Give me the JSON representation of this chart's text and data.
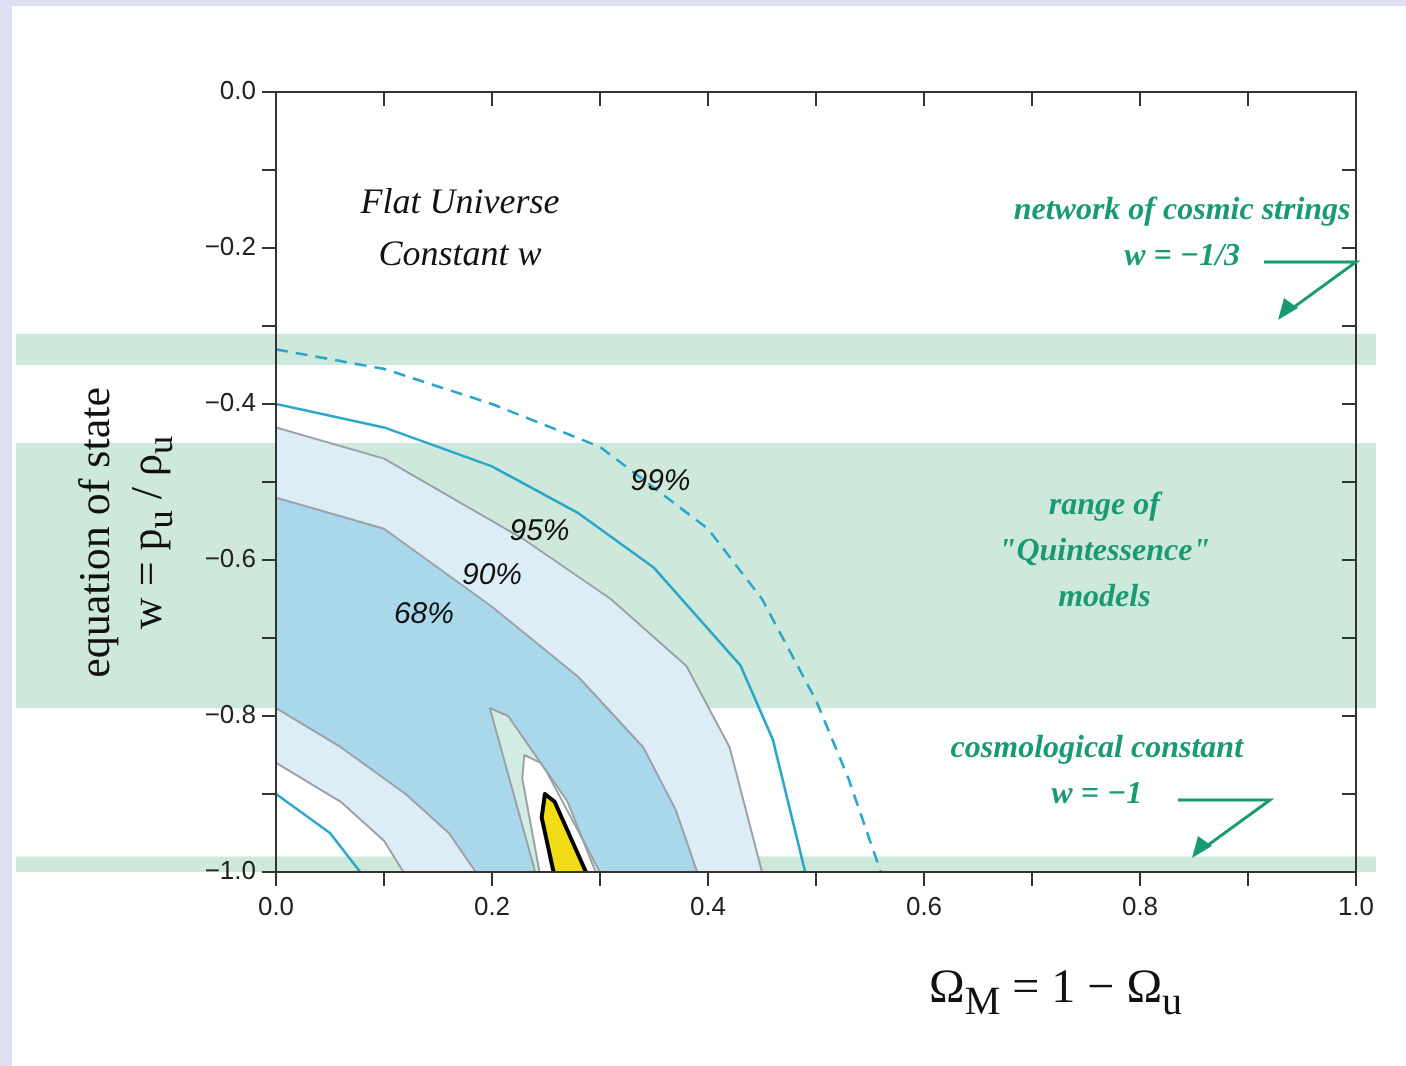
{
  "chart_data": {
    "type": "line",
    "xlabel": "Ω$_{M}$ = 1 − Ω$_{u}$",
    "ylabel": "equation of state\nw = p$_{u}$ / ρ$_{u}$",
    "xlim": [
      0,
      1
    ],
    "ylim": [
      -1,
      0
    ],
    "xticks": [
      {
        "value": 0,
        "label": "0.0"
      },
      {
        "value": 0.1,
        "label": null
      },
      {
        "value": 0.2,
        "label": "0.2"
      },
      {
        "value": 0.3,
        "label": null
      },
      {
        "value": 0.4,
        "label": "0.4"
      },
      {
        "value": 0.5,
        "label": null
      },
      {
        "value": 0.6,
        "label": "0.6"
      },
      {
        "value": 0.7,
        "label": null
      },
      {
        "value": 0.8,
        "label": "0.8"
      },
      {
        "value": 0.9,
        "label": null
      },
      {
        "value": 1,
        "label": "1.0"
      }
    ],
    "yticks": [
      {
        "value": 0,
        "label": "0.0"
      },
      {
        "value": -0.1,
        "label": null
      },
      {
        "value": -0.2,
        "label": "−0.2"
      },
      {
        "value": -0.3,
        "label": null
      },
      {
        "value": -0.4,
        "label": "−0.4"
      },
      {
        "value": -0.5,
        "label": null
      },
      {
        "value": -0.6,
        "label": "−0.6"
      },
      {
        "value": -0.7,
        "label": null
      },
      {
        "value": -0.8,
        "label": "−0.8"
      },
      {
        "value": -0.9,
        "label": null
      },
      {
        "value": -1,
        "label": "−1.0"
      }
    ],
    "grid": false,
    "legend": false,
    "bands": [
      {
        "axis": "y",
        "from": -0.35,
        "to": -0.31,
        "color": "#cfe8dc"
      },
      {
        "axis": "y",
        "from": -0.79,
        "to": -0.45,
        "color": "#cfe8dc"
      },
      {
        "axis": "y",
        "from": -1,
        "to": -0.98,
        "color": "#cfe8dc"
      }
    ],
    "series": [
      {
        "type": "area",
        "color": "#dcedf7",
        "x": [
          0,
          0.1,
          0.23,
          0.31,
          0.38,
          0.42,
          0.45,
          0.118,
          0.1,
          0.06,
          0
        ],
        "values": [
          -0.43,
          -0.47,
          -0.574,
          -0.65,
          -0.736,
          -0.84,
          -1,
          -1,
          -0.96,
          -0.91,
          -0.86
        ]
      },
      {
        "type": "area",
        "color": "#a8d8ea",
        "x": [
          0,
          0.1,
          0.2,
          0.28,
          0.34,
          0.37,
          0.39,
          0.185,
          0.16,
          0.12,
          0.06,
          0
        ],
        "values": [
          -0.52,
          -0.56,
          -0.66,
          -0.75,
          -0.84,
          -0.92,
          -1,
          -1,
          -0.95,
          -0.9,
          -0.84,
          -0.79
        ]
      },
      {
        "type": "line",
        "color": "#2aa6c8",
        "x": [
          0,
          0.1,
          0.2,
          0.28,
          0.35,
          0.43,
          0.46,
          0.49
        ],
        "values": [
          -0.4,
          -0.43,
          -0.48,
          -0.54,
          -0.61,
          -0.735,
          -0.83,
          -1
        ]
      },
      {
        "type": "line",
        "color": "#2aa6c8",
        "x": [
          0,
          0.05,
          0.078
        ],
        "values": [
          -0.9,
          -0.95,
          -1
        ]
      },
      {
        "type": "line",
        "color": "#2aa6c8",
        "line_style": "dashed",
        "x": [
          0,
          0.1,
          0.2,
          0.3,
          0.4,
          0.45,
          0.5,
          0.53,
          0.56
        ],
        "values": [
          -0.33,
          -0.355,
          -0.4,
          -0.455,
          -0.56,
          -0.65,
          -0.78,
          -0.88,
          -1
        ]
      },
      {
        "type": "area",
        "color": "#d2ebe3",
        "x": [
          0.24,
          0.21,
          0.198,
          0.215,
          0.25,
          0.3
        ],
        "values": [
          -1,
          -0.85,
          -0.79,
          -0.8,
          -0.87,
          -1
        ]
      },
      {
        "type": "area",
        "color": "#ffffff",
        "x": [
          0.244,
          0.228,
          0.23,
          0.245,
          0.27,
          0.296
        ],
        "values": [
          -1,
          -0.88,
          -0.85,
          -0.86,
          -0.91,
          -1
        ]
      },
      {
        "type": "area",
        "color": "#f2dc16",
        "x": [
          0.257,
          0.246,
          0.249,
          0.258,
          0.287
        ],
        "values": [
          -1,
          -0.93,
          -0.9,
          -0.91,
          -1
        ]
      }
    ],
    "annotations": [
      "Flat Universe\nConstant w",
      "network of cosmic strings\nw = −1/3",
      "range of\n\"Quintessence\"\nmodels",
      "cosmological constant\nw = −1",
      "99%",
      "95%",
      "90%",
      "68%"
    ]
  }
}
